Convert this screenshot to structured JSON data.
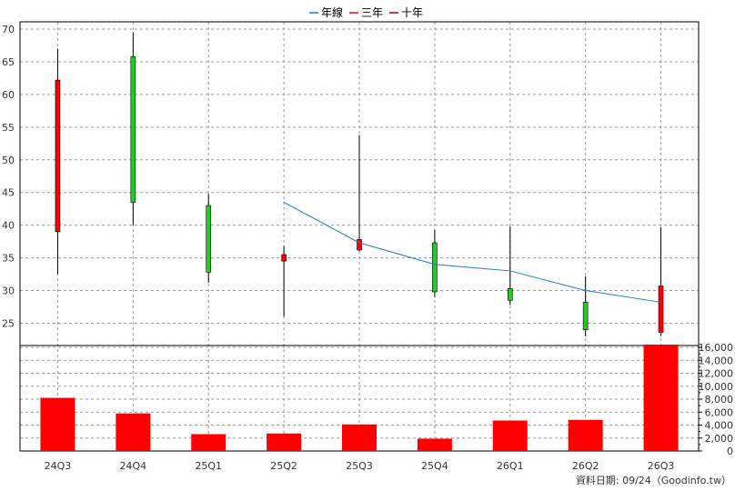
{
  "chart_data": {
    "type": "candlestick",
    "legend": {
      "placement": "top-center",
      "items": [
        {
          "label": "年線",
          "color": "#1f77d0"
        },
        {
          "label": "三年",
          "color": "#ff0000"
        },
        {
          "label": "十年",
          "color": "#a00040"
        }
      ]
    },
    "categories": [
      "24Q3",
      "24Q4",
      "25Q1",
      "25Q2",
      "25Q3",
      "25Q4",
      "26Q1",
      "26Q2",
      "26Q3"
    ],
    "price": {
      "ylim": [
        22,
        70
      ],
      "yticks": [
        25,
        30,
        35,
        40,
        45,
        50,
        55,
        60,
        65,
        70
      ],
      "candles": [
        {
          "open": 62.2,
          "high": 67.0,
          "low": 32.5,
          "close": 39.0,
          "color": "red"
        },
        {
          "open": 43.5,
          "high": 69.5,
          "low": 40.0,
          "close": 65.8,
          "color": "green"
        },
        {
          "open": 32.8,
          "high": 44.8,
          "low": 31.2,
          "close": 43.0,
          "color": "green"
        },
        {
          "open": 35.5,
          "high": 36.8,
          "low": 26.0,
          "close": 34.5,
          "color": "red"
        },
        {
          "open": 37.8,
          "high": 53.8,
          "low": 36.0,
          "close": 36.2,
          "color": "red"
        },
        {
          "open": 29.8,
          "high": 39.3,
          "low": 29.0,
          "close": 37.3,
          "color": "green"
        },
        {
          "open": 28.5,
          "high": 39.8,
          "low": 27.8,
          "close": 30.3,
          "color": "green"
        },
        {
          "open": 24.0,
          "high": 32.2,
          "low": 23.0,
          "close": 28.2,
          "color": "green"
        },
        {
          "open": 30.7,
          "high": 39.7,
          "low": 23.0,
          "close": 23.6,
          "color": "red"
        }
      ],
      "annual_line": {
        "name": "年線",
        "values": [
          null,
          null,
          null,
          43.5,
          37.3,
          34.0,
          33.0,
          30.0,
          28.2
        ]
      }
    },
    "volume": {
      "ylim": [
        0,
        16000
      ],
      "yticks": [
        0,
        2000,
        4000,
        6000,
        8000,
        10000,
        12000,
        14000,
        16000
      ],
      "ytick_labels": [
        "0",
        "2,000",
        "4,000",
        "6,000",
        "8,000",
        "10,000",
        "12,000",
        "14,000",
        "16,000"
      ],
      "values": [
        8200,
        5800,
        2600,
        2700,
        4100,
        1900,
        4700,
        4800,
        16500
      ],
      "color": "#ff0000"
    },
    "grid": true,
    "footer": "資料日期: 09/24（Goodinfo.tw）"
  }
}
